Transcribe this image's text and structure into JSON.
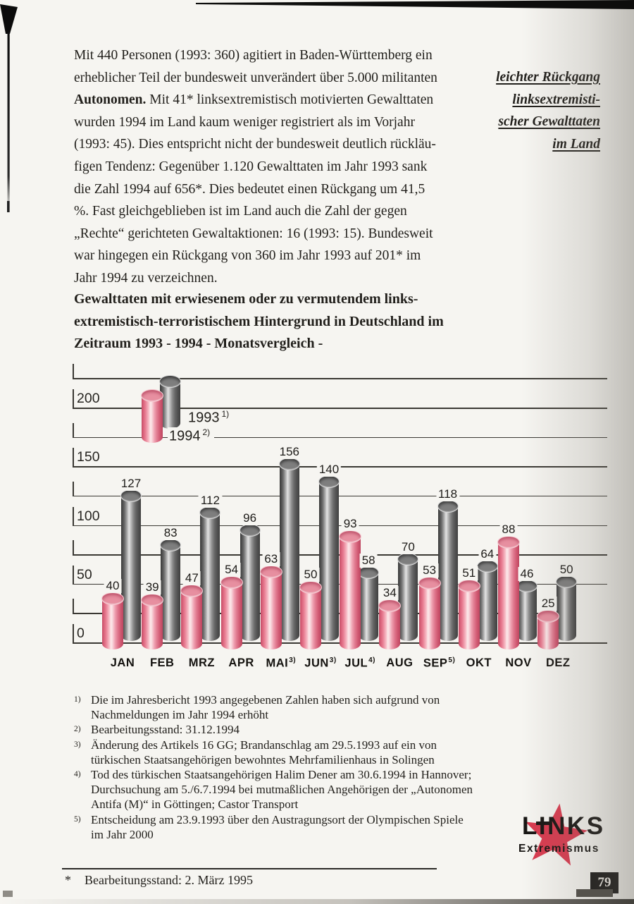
{
  "paragraph": {
    "lines": [
      {
        "t": "Mit 440 Personen (1993: 360) agitiert in Baden-Württemberg ein"
      },
      {
        "t": "erheblicher Teil der bundesweit unverändert über 5.000 militanten"
      },
      {
        "b": "Autonomen.",
        "t": " Mit 41* linksextremistisch motivierten Gewalttaten"
      },
      {
        "t": "wurden 1994 im Land kaum weniger registriert als im Vorjahr"
      },
      {
        "t": "(1993: 45). Dies entspricht nicht der bundesweit deutlich rückläu-"
      },
      {
        "t": "figen Tendenz: Gegenüber 1.120 Gewalttaten im Jahr 1993 sank"
      },
      {
        "t": "die Zahl 1994 auf 656*. Dies bedeutet einen Rückgang um 41,5"
      },
      {
        "t": "%. Fast gleichgeblieben ist im Land auch die Zahl der gegen"
      },
      {
        "t": "„Rechte“ gerichteten Gewaltaktionen: 16 (1993: 15). Bundesweit"
      },
      {
        "t": "war hingegen ein Rückgang von 360 im Jahr 1993 auf 201* im"
      },
      {
        "t": "Jahr 1994 zu verzeichnen."
      }
    ]
  },
  "margin_note": {
    "lines": [
      "leichter Rückgang",
      "linksextremisti-",
      "scher Gewalttaten",
      "im Land"
    ]
  },
  "chart_data": {
    "type": "bar",
    "title_lines": [
      "Gewalttaten mit erwiesenem oder zu vermutendem links-",
      "extremistisch-terroristischem Hintergrund in Deutschland im",
      "Zeitraum 1993 - 1994 - Monatsvergleich -"
    ],
    "categories": [
      {
        "label": "JAN",
        "sup": ""
      },
      {
        "label": "FEB",
        "sup": ""
      },
      {
        "label": "MRZ",
        "sup": ""
      },
      {
        "label": "APR",
        "sup": ""
      },
      {
        "label": "MAI",
        "sup": "3)"
      },
      {
        "label": "JUN",
        "sup": "3)"
      },
      {
        "label": "JUL",
        "sup": "4)"
      },
      {
        "label": "AUG",
        "sup": ""
      },
      {
        "label": "SEP",
        "sup": "5)"
      },
      {
        "label": "OKT",
        "sup": ""
      },
      {
        "label": "NOV",
        "sup": ""
      },
      {
        "label": "DEZ",
        "sup": ""
      }
    ],
    "series": [
      {
        "name": "1993",
        "footnote_sup": "1)",
        "color": "#6b6b6b",
        "values": [
          127,
          83,
          112,
          96,
          156,
          140,
          58,
          70,
          118,
          64,
          46,
          50
        ]
      },
      {
        "name": "1994",
        "footnote_sup": "2)",
        "color": "#ec8ba0",
        "values": [
          40,
          39,
          47,
          54,
          63,
          50,
          93,
          34,
          53,
          51,
          88,
          25
        ]
      }
    ],
    "xlabel": "",
    "ylabel": "",
    "ylim": [
      0,
      225
    ],
    "grid_step": 25,
    "labeled_tick_step": 50,
    "grid_on": true,
    "legend_position": "top-left-inside"
  },
  "footnotes": [
    {
      "marker": "1)",
      "lines": [
        "Die im Jahresbericht 1993 angegebenen Zahlen haben sich aufgrund von",
        "Nachmeldungen im Jahr 1994 erhöht"
      ]
    },
    {
      "marker": "2)",
      "lines": [
        "Bearbeitungsstand: 31.12.1994"
      ]
    },
    {
      "marker": "3)",
      "lines": [
        "Änderung des Artikels 16 GG; Brandanschlag am 29.5.1993 auf ein von",
        "türkischen Staatsangehörigen bewohntes Mehrfamilienhaus in Solingen"
      ]
    },
    {
      "marker": "4)",
      "lines": [
        "Tod des türkischen Staatsangehörigen Halim Dener am 30.6.1994 in Hannover;",
        "Durchsuchung am 5./6.7.1994 bei mutmaßlichen Angehörigen der „Autonomen",
        "Antifa (M)“ in Göttingen; Castor Transport"
      ]
    },
    {
      "marker": "5)",
      "lines": [
        "Entscheidung am 23.9.1993 über den Austragungsort der Olympischen Spiele",
        "im Jahr 2000"
      ]
    }
  ],
  "footer": {
    "asterisk": "*",
    "note": "Bearbeitungsstand: 2. März 1995",
    "page_number": "79"
  },
  "logo": {
    "title": "LINKS",
    "subtitle": "Extremismus",
    "star_color": "#da3a4f"
  }
}
